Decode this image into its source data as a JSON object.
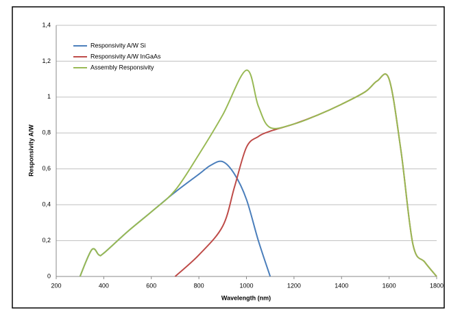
{
  "chart_data": {
    "type": "line",
    "xlabel": "Wavelength (nm)",
    "ylabel": "Responsivity A/W",
    "xlim": [
      200,
      1800
    ],
    "xticks": [
      200,
      400,
      600,
      800,
      1000,
      1200,
      1400,
      1600,
      1800
    ],
    "ylim": [
      0,
      1.4
    ],
    "yticks": [
      {
        "value": 0,
        "label": "0"
      },
      {
        "value": 0.2,
        "label": "0,2"
      },
      {
        "value": 0.4,
        "label": "0,4"
      },
      {
        "value": 0.6,
        "label": "0,6"
      },
      {
        "value": 0.8,
        "label": "0,8"
      },
      {
        "value": 1,
        "label": "1"
      },
      {
        "value": 1.2,
        "label": "1,2"
      },
      {
        "value": 1.4,
        "label": "1,4"
      }
    ],
    "grid": true,
    "legend": "upper left",
    "series": [
      {
        "name": "Responsivity A/W Si",
        "color": "#4a7ebb",
        "x": [
          300,
          350,
          380,
          400,
          500,
          600,
          700,
          800,
          850,
          900,
          950,
          1000,
          1050,
          1100
        ],
        "values": [
          0,
          0.15,
          0.12,
          0.13,
          0.25,
          0.36,
          0.47,
          0.57,
          0.62,
          0.64,
          0.57,
          0.43,
          0.2,
          0
        ]
      },
      {
        "name": "Responsivity A/W InGaAs",
        "color": "#be4b48",
        "x": [
          700,
          800,
          900,
          950,
          1000,
          1050,
          1100,
          1200,
          1300,
          1400,
          1500,
          1550,
          1600,
          1650,
          1700,
          1750,
          1800
        ],
        "values": [
          0,
          0.12,
          0.28,
          0.5,
          0.72,
          0.78,
          0.81,
          0.85,
          0.9,
          0.96,
          1.03,
          1.09,
          1.1,
          0.7,
          0.18,
          0.08,
          0
        ]
      },
      {
        "name": "Assembly Responsivity",
        "color": "#98b954",
        "x": [
          300,
          350,
          380,
          400,
          500,
          600,
          700,
          800,
          900,
          1000,
          1050,
          1100,
          1200,
          1300,
          1400,
          1500,
          1550,
          1600,
          1650,
          1700,
          1750,
          1800
        ],
        "values": [
          0,
          0.15,
          0.12,
          0.13,
          0.25,
          0.36,
          0.48,
          0.68,
          0.9,
          1.15,
          0.95,
          0.83,
          0.85,
          0.9,
          0.96,
          1.03,
          1.09,
          1.1,
          0.7,
          0.18,
          0.08,
          0
        ]
      }
    ]
  }
}
